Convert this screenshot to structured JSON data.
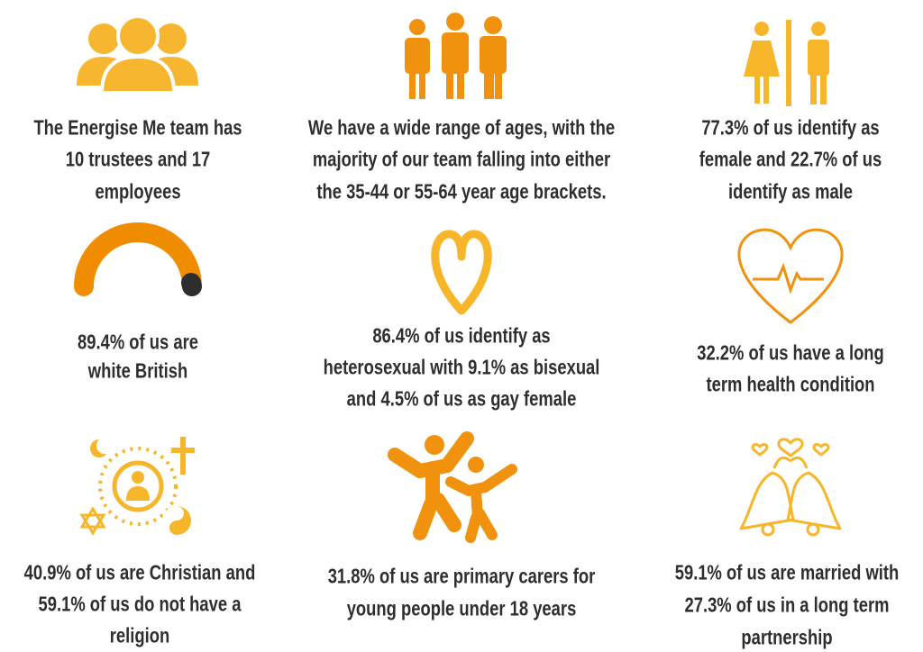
{
  "cells": [
    {
      "lines": [
        "The Energise Me team has",
        "10 trustees and 17",
        "employees"
      ]
    },
    {
      "lines": [
        "We have a wide range of ages, with the",
        "majority of our team falling into either",
        "the 35-44 or 55-64 year age brackets."
      ]
    },
    {
      "lines": [
        "77.3% of us identify as",
        "female and 22.7% of us",
        "identify as male"
      ]
    },
    {
      "lines": [
        "89.4% of us are",
        "white British"
      ]
    },
    {
      "lines": [
        "86.4% of us identify as",
        "heterosexual with 9.1% as bisexual",
        "and 4.5% of us as gay female"
      ]
    },
    {
      "lines": [
        "32.2% of us have a long",
        "term health condition"
      ]
    },
    {
      "lines": [
        "40.9% of us are Christian and",
        "59.1% of us do not have a",
        "religion"
      ]
    },
    {
      "lines": [
        "31.8% of us are primary carers for",
        "young people under 18 years"
      ]
    },
    {
      "lines": [
        "59.1% of us are married with",
        "27.3% of us in a long term",
        "partnership"
      ]
    }
  ]
}
